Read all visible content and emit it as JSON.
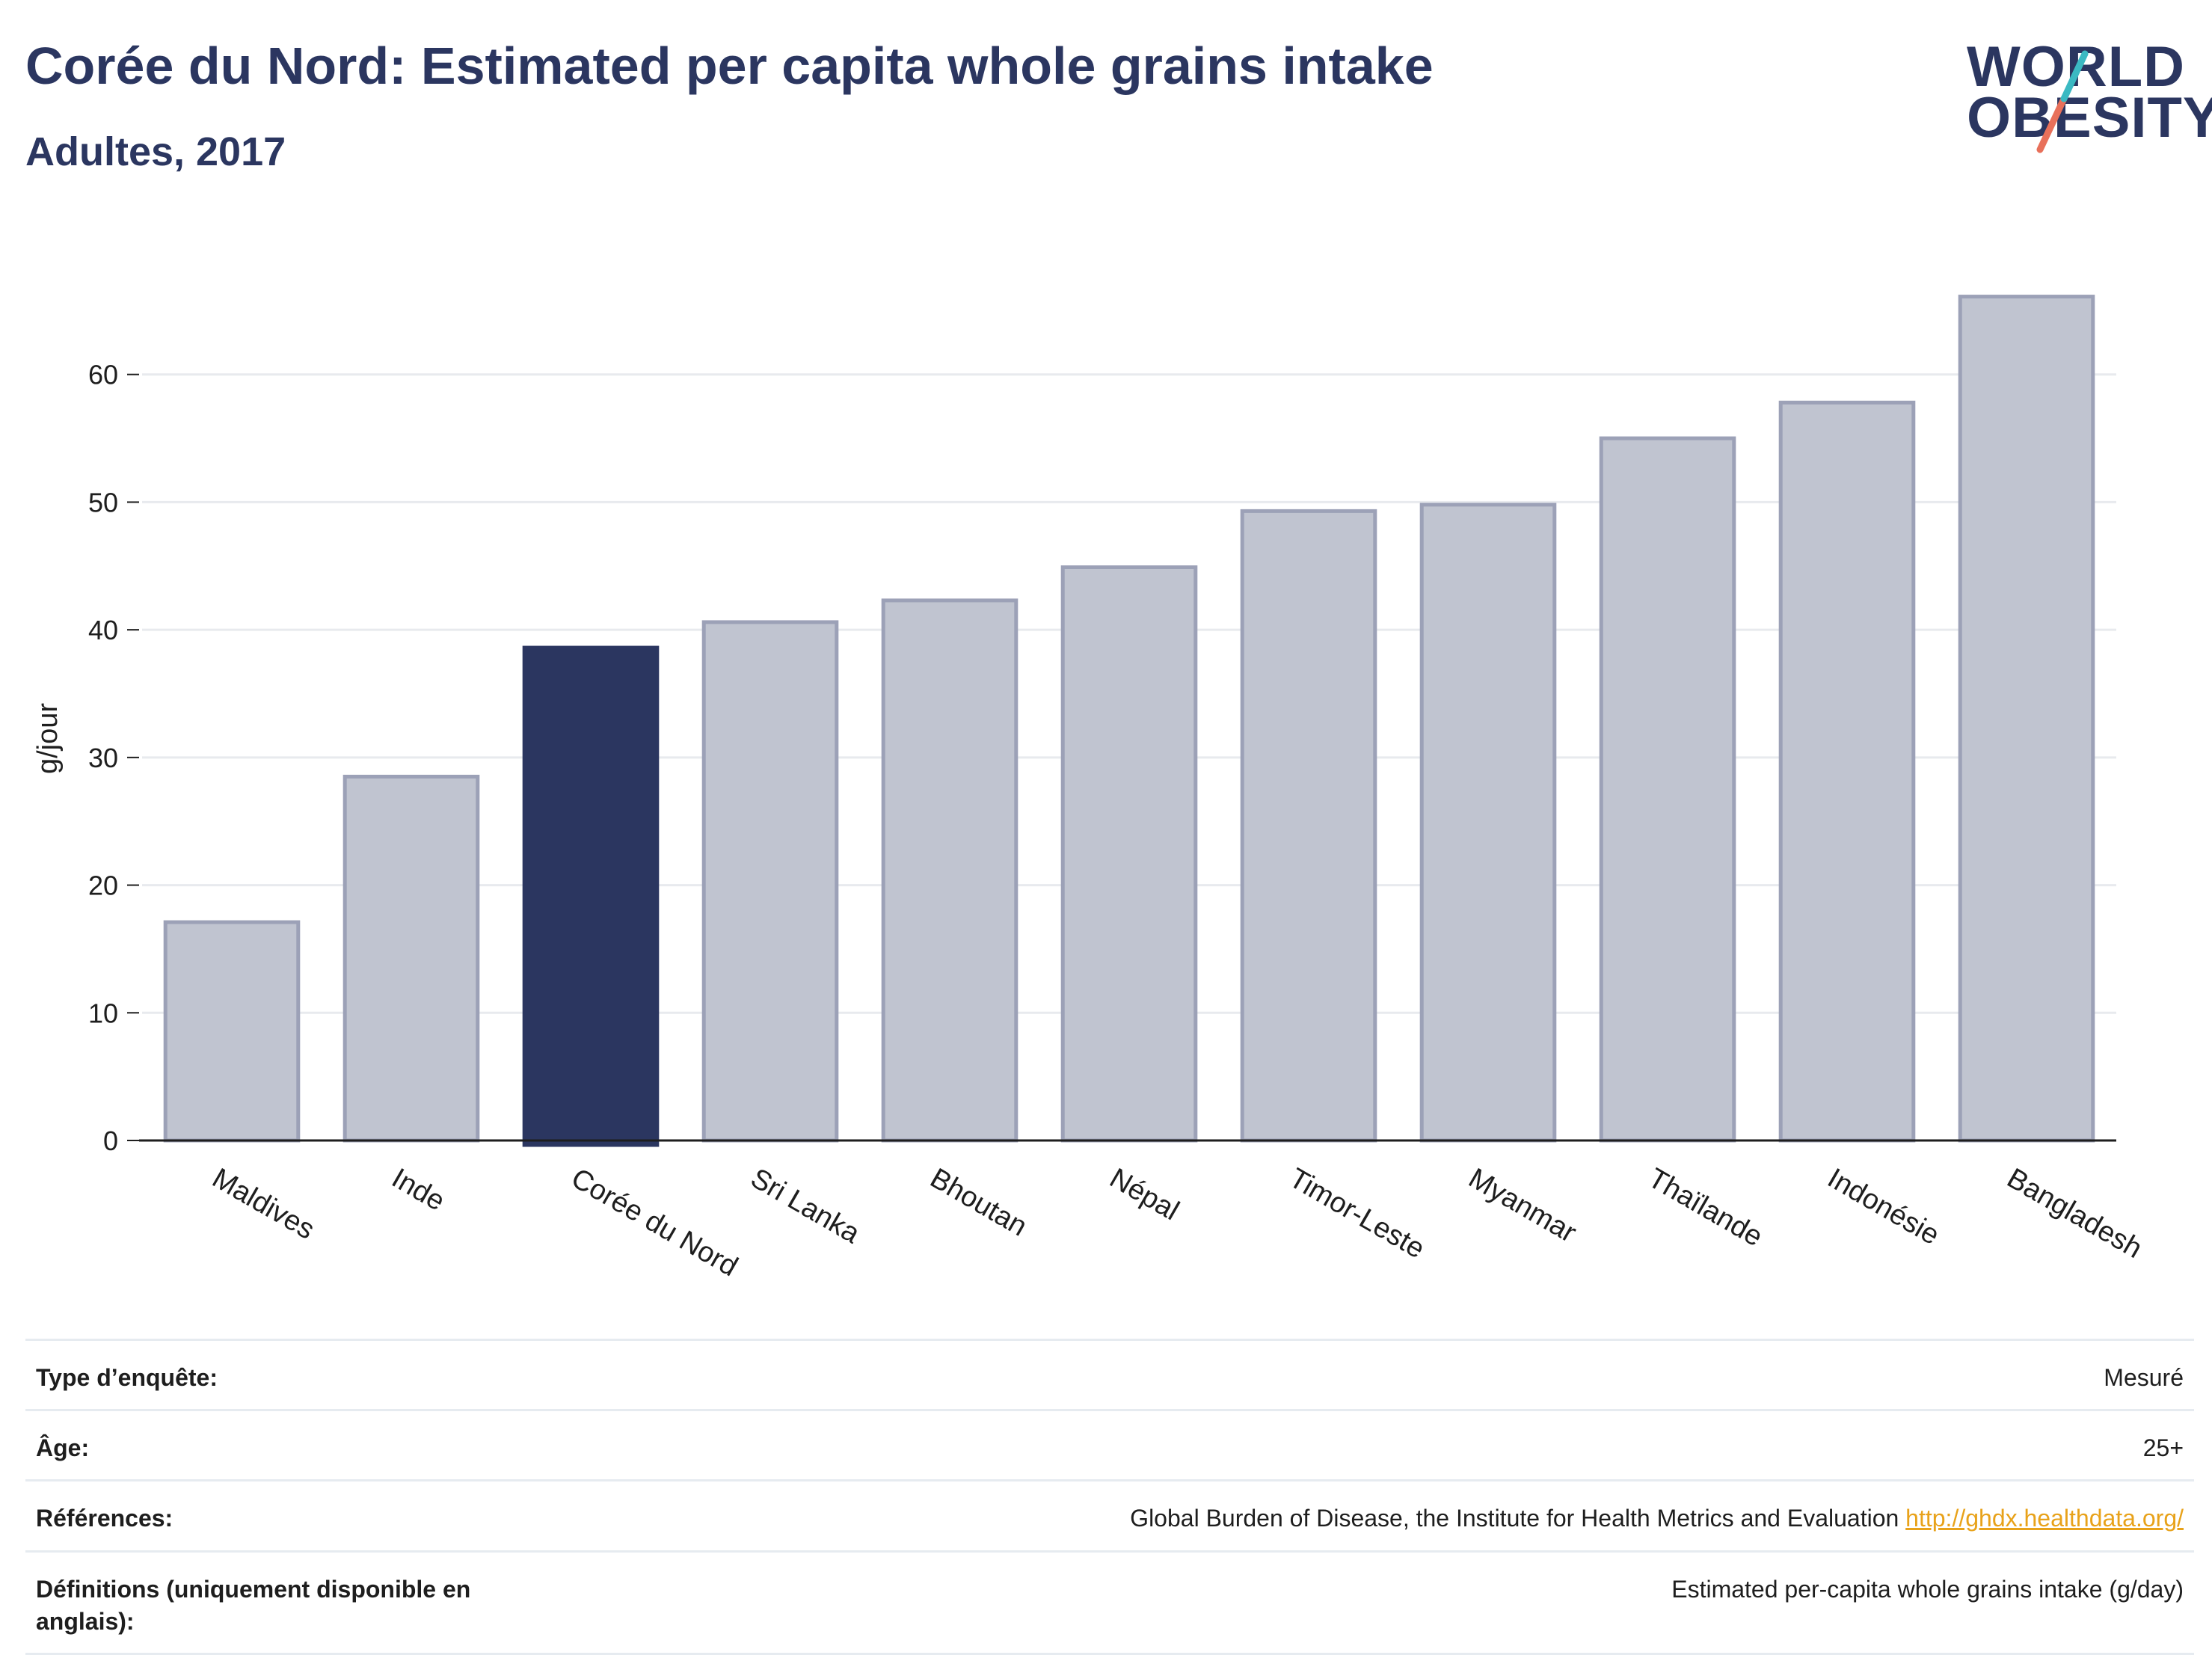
{
  "header": {
    "title": "Corée du Nord: Estimated per capita whole grains intake",
    "subtitle": "Adultes, 2017"
  },
  "logo": {
    "line1": "WORLD",
    "line2": "OBESITY",
    "slash_colors": [
      "#3bb9c2",
      "#e8705a"
    ]
  },
  "chart_data": {
    "type": "bar",
    "ylabel": "g/jour",
    "ylim": [
      0,
      70
    ],
    "yticks": [
      0,
      10,
      20,
      30,
      40,
      50,
      60
    ],
    "categories": [
      "Maldives",
      "Inde",
      "Corée du Nord",
      "Sri Lanka",
      "Bhoutan",
      "Népal",
      "Timor-Leste",
      "Myanmar",
      "Thaïlande",
      "Indonésie",
      "Bangladesh"
    ],
    "values": [
      17.1,
      28.5,
      38.6,
      40.6,
      42.3,
      44.9,
      49.3,
      49.8,
      55.0,
      57.8,
      66.1
    ],
    "highlight": "Corée du Nord",
    "colors": {
      "bar": "#c0c4d0",
      "bar_border": "#9ca1b7",
      "highlight": "#2b3660"
    },
    "grid": true
  },
  "info": {
    "rows": [
      {
        "key": "Type d’enquête:",
        "value": "Mesuré"
      },
      {
        "key": "Âge:",
        "value": "25+"
      },
      {
        "key": "Références:",
        "value": "Global Burden of Disease, the Institute for Health Metrics and Evaluation",
        "link": "http://ghdx.healthdata.org/"
      },
      {
        "key": "Définitions (uniquement disponible en anglais):",
        "value": "Estimated per-capita whole grains intake (g/day)"
      }
    ]
  }
}
